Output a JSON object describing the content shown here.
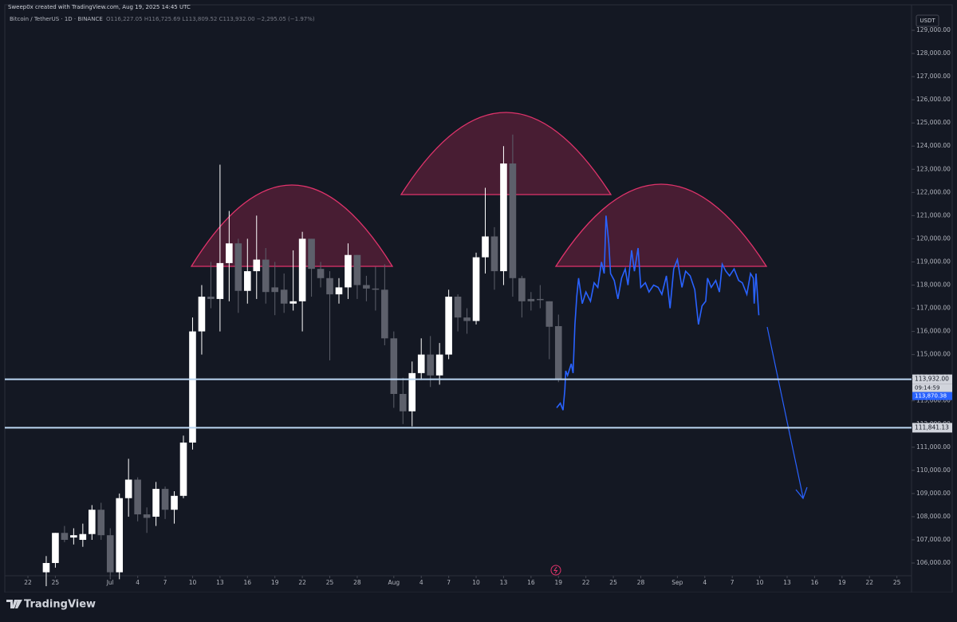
{
  "chart_data": {
    "type": "candlestick",
    "header": "Sweep0x created with TradingView.com, Aug 19, 2025 14:45 UTC",
    "symbol_line": "Bitcoin / TetherUS · 1D · BINANCE",
    "ohlc_line": "O116,227.05 H116,725.69 L113,809.52 C113,932.00 −2,295.05 (−1.97%)",
    "currency": "USDT",
    "logo": "TradingView",
    "up_color": "#ffffff",
    "down_color": "#5d606b",
    "x": [
      2,
      3,
      4,
      5,
      6,
      7,
      8,
      9,
      10,
      11,
      12,
      13,
      14,
      15,
      16,
      17,
      18,
      19,
      20,
      21,
      22,
      23,
      24,
      25,
      26,
      27,
      28,
      29,
      30,
      31,
      32,
      33,
      34,
      35,
      36,
      37,
      38,
      39,
      40,
      41,
      42,
      43,
      44,
      45,
      46,
      47,
      48,
      49,
      50,
      51,
      52,
      53,
      54,
      55,
      56,
      57,
      58
    ],
    "open": [
      105600,
      106000,
      107300,
      107100,
      107000,
      107250,
      108300,
      107200,
      105600,
      108800,
      109600,
      108100,
      108000,
      109200,
      108300,
      108900,
      111200,
      116000,
      117500,
      117400,
      118950,
      119800,
      117750,
      118600,
      119100,
      117900,
      117800,
      117200,
      117300,
      120000,
      118700,
      118300,
      117600,
      117900,
      119300,
      118000,
      117850,
      117800,
      115700,
      113300,
      112550,
      114200,
      115000,
      114100,
      115000,
      117500,
      116600,
      116450,
      119200,
      120100,
      118600,
      123250,
      118300,
      117400,
      117400,
      117300,
      116227.05
    ],
    "high": [
      106300,
      107300,
      107600,
      107500,
      107700,
      108500,
      108600,
      107500,
      109000,
      110500,
      109700,
      108400,
      109500,
      109300,
      109100,
      111500,
      116600,
      118000,
      119000,
      123200,
      121200,
      120000,
      120000,
      121000,
      119600,
      119000,
      118500,
      119500,
      120300,
      120000,
      119000,
      118600,
      118300,
      119800,
      119300,
      118400,
      118800,
      118900,
      116000,
      114000,
      114700,
      115700,
      115800,
      115500,
      117800,
      117600,
      117000,
      119400,
      122200,
      120500,
      124000,
      124500,
      118400,
      117700,
      118000,
      117300,
      116725.69
    ],
    "low": [
      105000,
      105800,
      106900,
      106800,
      106700,
      107000,
      107000,
      105300,
      105300,
      108000,
      107800,
      107300,
      107600,
      107900,
      107700,
      108800,
      110900,
      115000,
      117000,
      116000,
      117300,
      116800,
      117200,
      117400,
      117200,
      116700,
      116800,
      116900,
      116000,
      117500,
      117900,
      114750,
      117200,
      117400,
      117400,
      117300,
      116900,
      115400,
      112700,
      112000,
      111900,
      113900,
      113600,
      113700,
      114800,
      116000,
      115900,
      116300,
      118500,
      117800,
      118000,
      117500,
      116600,
      116900,
      117000,
      114800,
      113809.52
    ],
    "close": [
      106000,
      107300,
      107000,
      107200,
      107250,
      108300,
      107200,
      105600,
      108800,
      109600,
      108100,
      107950,
      109200,
      108300,
      108900,
      111200,
      116000,
      117500,
      117400,
      118950,
      119800,
      117750,
      118600,
      119100,
      117700,
      117700,
      117200,
      117300,
      120000,
      118700,
      118300,
      117600,
      117900,
      119300,
      118000,
      117850,
      117800,
      115700,
      113300,
      112550,
      114200,
      115000,
      114100,
      115000,
      117500,
      116600,
      116450,
      119200,
      120100,
      118600,
      123250,
      118300,
      117300,
      117300,
      117350,
      116200,
      113932
    ],
    "projection": {
      "color": "#2962ff",
      "x": [
        57.8,
        58.2,
        58.5,
        58.7,
        58.8,
        59,
        59.4,
        59.6,
        59.8,
        60,
        60.2,
        60.6,
        61,
        61.5,
        61.9,
        62.3,
        62.7,
        63,
        63.2,
        63.5,
        63.7,
        64.1,
        64.5,
        64.9,
        65.3,
        65.6,
        66,
        66.3,
        66.7,
        67,
        67.5,
        67.9,
        68.4,
        68.9,
        69.3,
        69.8,
        70.2,
        70.6,
        71,
        71.5,
        71.9,
        72.4,
        72.9,
        73.3,
        73.7,
        74.1,
        74.3,
        74.7,
        75.2,
        75.6,
        75.9,
        76.3,
        76.7,
        77.2,
        77.7,
        78.1,
        78.6,
        79,
        79.3,
        79.4,
        79.6,
        79.9
      ],
      "y": [
        112700,
        112900,
        112600,
        113500,
        114300,
        114100,
        114600,
        114200,
        116300,
        117500,
        118300,
        117200,
        117700,
        117300,
        118100,
        117900,
        119000,
        118500,
        121000,
        119800,
        118500,
        118200,
        117400,
        118300,
        118700,
        118000,
        119500,
        118600,
        119600,
        117900,
        118100,
        117700,
        118000,
        117900,
        117600,
        118400,
        117000,
        118700,
        119100,
        117900,
        118600,
        118400,
        117800,
        116300,
        117100,
        117300,
        118300,
        117900,
        118200,
        117700,
        118900,
        118600,
        118400,
        118700,
        118200,
        118100,
        117600,
        118500,
        118300,
        117200,
        118500,
        116700
      ]
    },
    "levels": [
      {
        "value": 113932,
        "label": "113,932.00"
      },
      {
        "value": 111841.13,
        "label": "111,841.13"
      }
    ],
    "level_color": "#bcd7f3",
    "countdown": "09:14:59",
    "last_tag": {
      "value": 113870.38,
      "label": "113,870.38"
    },
    "ylim": [
      105450,
      129620
    ],
    "yticks": [
      {
        "value": 106000,
        "label": "106,000.00"
      },
      {
        "value": 107000,
        "label": "107,000.00"
      },
      {
        "value": 108000,
        "label": "108,000.00"
      },
      {
        "value": 109000,
        "label": "109,000.00"
      },
      {
        "value": 110000,
        "label": "110,000.00"
      },
      {
        "value": 111000,
        "label": "111,000.00"
      },
      {
        "value": 112000,
        "label": "112,000.00"
      },
      {
        "value": 113000,
        "label": "113,000.00"
      },
      {
        "value": 114000,
        "label": "114,000.00"
      },
      {
        "value": 115000,
        "label": "115,000.00"
      },
      {
        "value": 116000,
        "label": "116,000.00"
      },
      {
        "value": 117000,
        "label": "117,000.00"
      },
      {
        "value": 118000,
        "label": "118,000.00"
      },
      {
        "value": 119000,
        "label": "119,000.00"
      },
      {
        "value": 120000,
        "label": "120,000.00"
      },
      {
        "value": 121000,
        "label": "121,000.00"
      },
      {
        "value": 122000,
        "label": "122,000.00"
      },
      {
        "value": 123000,
        "label": "123,000.00"
      },
      {
        "value": 124000,
        "label": "124,000.00"
      },
      {
        "value": 125000,
        "label": "125,000.00"
      },
      {
        "value": 126000,
        "label": "126,000.00"
      },
      {
        "value": 127000,
        "label": "127,000.00"
      },
      {
        "value": 128000,
        "label": "128,000.00"
      },
      {
        "value": 129000,
        "label": "129,000.00"
      }
    ],
    "xlim": [
      -2.53,
      96.6
    ],
    "xticks": [
      0,
      3,
      {
        "value": 9,
        "label": "Jul"
      },
      12,
      15,
      18,
      21,
      24,
      27,
      30,
      33,
      36,
      {
        "value": 40,
        "label": "Aug"
      },
      {
        "value": 43,
        "label": "4"
      },
      {
        "value": 46,
        "label": "7"
      },
      {
        "value": 49,
        "label": "10"
      },
      {
        "value": 52,
        "label": "13"
      },
      {
        "value": 55,
        "label": "16"
      },
      {
        "value": 58,
        "label": "19"
      },
      {
        "value": 61,
        "label": "22"
      },
      {
        "value": 64,
        "label": "25"
      },
      {
        "value": 67,
        "label": "28"
      },
      {
        "value": 71,
        "label": "Sep"
      },
      {
        "value": 74,
        "label": "4"
      },
      {
        "value": 77,
        "label": "7"
      },
      {
        "value": 80,
        "label": "10"
      },
      {
        "value": 83,
        "label": "13"
      },
      {
        "value": 86,
        "label": "16"
      },
      {
        "value": 89,
        "label": "19"
      },
      {
        "value": 92,
        "label": "22"
      },
      {
        "value": 95,
        "label": "25"
      }
    ],
    "xtick_labels": [
      "22",
      "25",
      null,
      "4",
      "7",
      "10",
      "13",
      "16",
      "19",
      "22",
      "25",
      "28"
    ]
  }
}
